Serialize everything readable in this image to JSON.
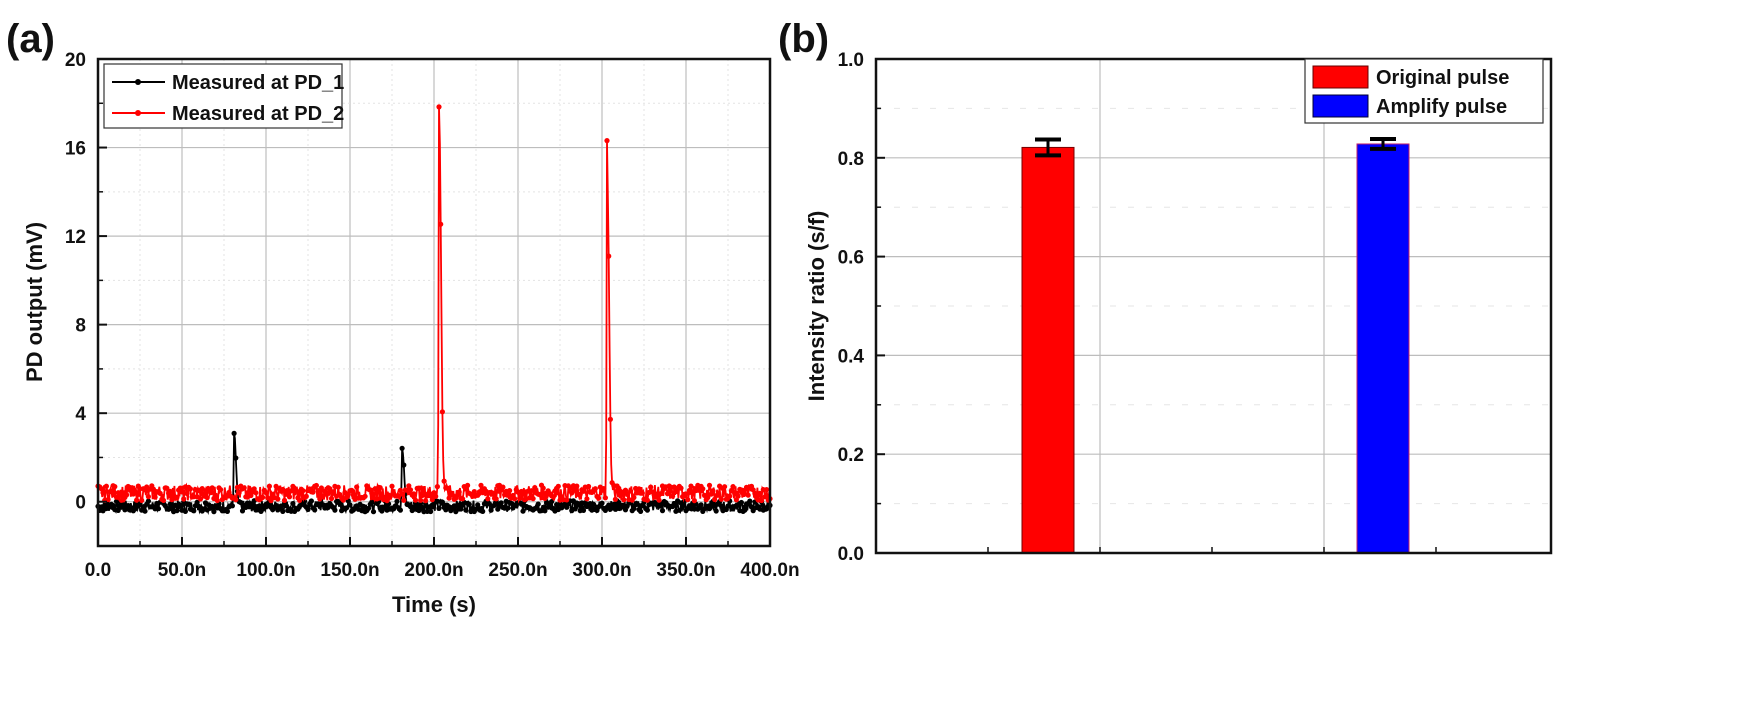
{
  "panels": {
    "a": {
      "label": "(a)"
    },
    "b": {
      "label": "(b)"
    }
  },
  "chart_data": [
    {
      "type": "line",
      "panel": "(a)",
      "title": "",
      "xlabel": "Time (s)",
      "ylabel": "PD output (mV)",
      "xlim": [
        0,
        400
      ],
      "ylim": [
        -2,
        20
      ],
      "x_unit_note": "x values in ns",
      "x_ticks": [
        "0.0",
        "50.0n",
        "100.0n",
        "150.0n",
        "200.0n",
        "250.0n",
        "300.0n",
        "350.0n",
        "400.0n"
      ],
      "y_ticks": [
        "0",
        "4",
        "8",
        "12",
        "16",
        "20"
      ],
      "grid": true,
      "legend_position": "top-left",
      "series": [
        {
          "name": "Measured at PD_1",
          "color": "#000000",
          "baseline": -0.2,
          "noise": 0.25,
          "peaks": [
            {
              "x": 81,
              "y": 3.2
            },
            {
              "x": 181,
              "y": 2.6
            }
          ]
        },
        {
          "name": "Measured at PD_2",
          "color": "#ff0000",
          "baseline": 0.4,
          "noise": 0.35,
          "peaks": [
            {
              "x": 203,
              "y": 19.3
            },
            {
              "x": 303,
              "y": 16.6
            }
          ]
        }
      ]
    },
    {
      "type": "bar",
      "panel": "(b)",
      "title": "",
      "xlabel": "",
      "ylabel": "Intensity ratio (s/f)",
      "ylim": [
        0,
        1.0
      ],
      "y_ticks": [
        "0.0",
        "0.2",
        "0.4",
        "0.6",
        "0.8",
        "1.0"
      ],
      "grid": true,
      "legend_position": "top-right",
      "categories": [
        "Original pulse",
        "Amplify pulse"
      ],
      "series": [
        {
          "name": "Original pulse",
          "color": "#ff0000",
          "values": [
            0.821
          ],
          "error": [
            0.016
          ]
        },
        {
          "name": "Amplify pulse",
          "color": "#0000ff",
          "values": [
            0.828
          ],
          "error": [
            0.01
          ]
        }
      ]
    }
  ]
}
